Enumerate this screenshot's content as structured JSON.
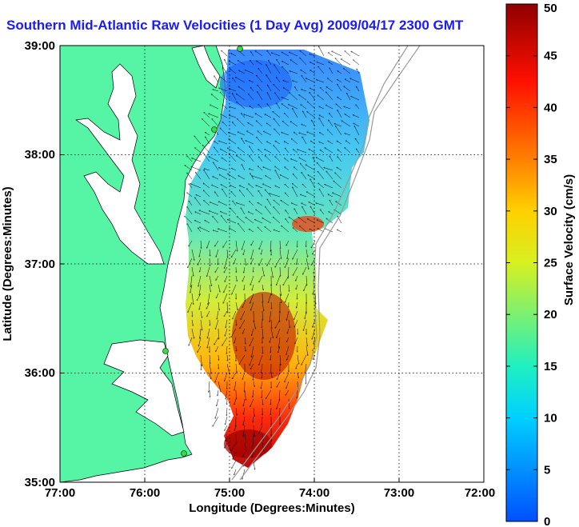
{
  "title": "Southern Mid-Atlantic Raw Velocities (1 Day Avg) 2009/04/17 2300 GMT",
  "axes": {
    "x_label": "Longitude (Degrees:Minutes)",
    "y_label": "Latitude (Degrees:Minutes)",
    "x_ticks": [
      "77:00",
      "76:00",
      "75:00",
      "74:00",
      "73:00",
      "72:00"
    ],
    "y_ticks": [
      "39:00",
      "38:00",
      "37:00",
      "36:00",
      "35:00"
    ]
  },
  "colorbar": {
    "label": "Surface Velocity (cm/s)",
    "ticks": [
      "0",
      "5",
      "10",
      "15",
      "20",
      "25",
      "30",
      "35",
      "40",
      "45",
      "50"
    ],
    "min": 0,
    "max": 50
  },
  "colors": {
    "land": "#55f5a5",
    "title": "#1a1aff",
    "station": "#33dd44"
  }
}
